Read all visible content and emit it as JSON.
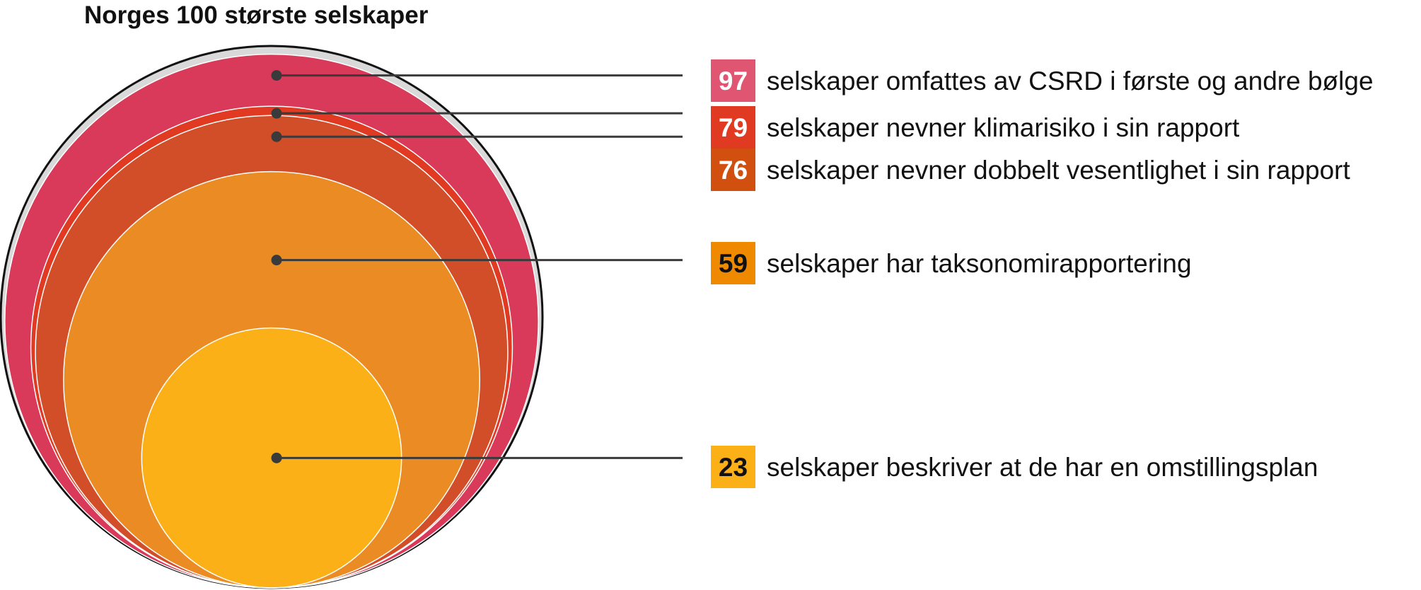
{
  "chart_data": {
    "type": "nested-circles",
    "title": "Norges 100 største selskaper",
    "total": 100,
    "total_color": "#d9d9d9",
    "items": [
      {
        "value": 97,
        "label": "selskaper omfattes av CSRD i første og andre bølge",
        "color": "#d93a5a",
        "badge_color": "#e05572",
        "text_color": "#ffffff"
      },
      {
        "value": 79,
        "label": "selskaper nevner klimarisiko i sin rapport",
        "color": "#e13a22",
        "badge_color": "#e13a22",
        "text_color": "#ffffff"
      },
      {
        "value": 76,
        "label": "selskaper nevner dobbelt vesentlighet i sin rapport",
        "color": "#d24e28",
        "badge_color": "#d2500f",
        "text_color": "#ffffff"
      },
      {
        "value": 59,
        "label": "selskaper har taksonomirapportering",
        "color": "#ea8c23",
        "badge_color": "#ef8a00",
        "text_color": "#111111"
      },
      {
        "value": 23,
        "label": "selskaper beskriver at de har en omstillingsplan",
        "color": "#fcb017",
        "badge_color": "#fcb017",
        "text_color": "#111111"
      }
    ]
  }
}
